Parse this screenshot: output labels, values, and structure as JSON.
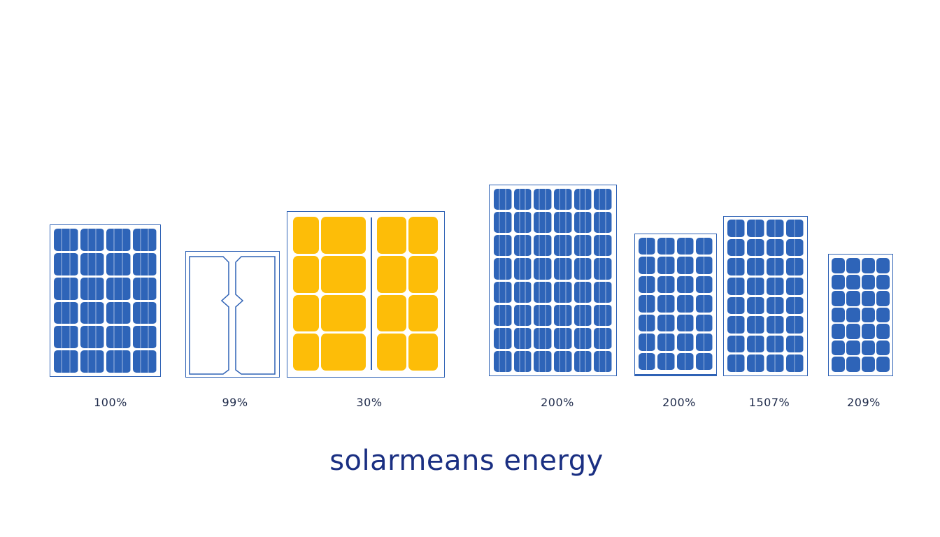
{
  "brand": {
    "text": "solarmeans energy"
  },
  "colors": {
    "panel_blue": "#2e64b8",
    "frame_blue": "#2f62b5",
    "cell_yellow": "#fdbd08",
    "brand_navy": "#1a2f82",
    "label_text": "#1e2a4a"
  },
  "panels": [
    {
      "label": "100%",
      "type": "blue-mono",
      "cols": 4,
      "rows": 6
    },
    {
      "label": "99%",
      "type": "outline-split"
    },
    {
      "label": "30%",
      "type": "yellow-split",
      "cols": 4,
      "rows": 4
    },
    {
      "label": "200%",
      "type": "blue-mono",
      "cols": 6,
      "rows": 8
    },
    {
      "label": "200%",
      "type": "blue-mono",
      "cols": 4,
      "rows": 7
    },
    {
      "label": "1507%",
      "type": "blue-mono",
      "cols": 4,
      "rows": 8
    },
    {
      "label": "209%",
      "type": "blue-poly",
      "cols": 4,
      "rows": 7
    }
  ]
}
